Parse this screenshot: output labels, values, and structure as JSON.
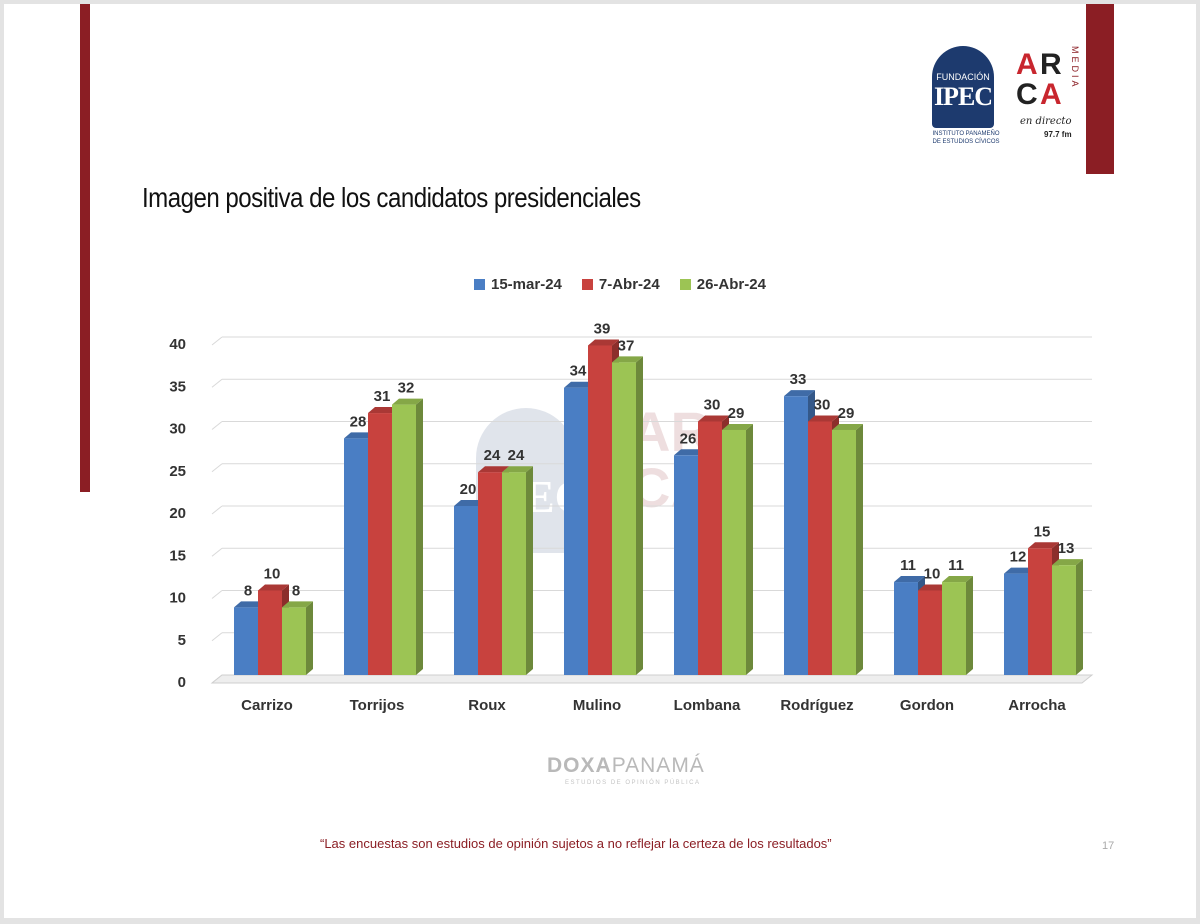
{
  "slide_title": "Imagen positiva de los candidatos presidenciales",
  "logos": {
    "ipec_top": "FUNDACIÓN",
    "ipec_name": "IPEC",
    "ipec_sub1": "INSTITUTO PANAMEÑO",
    "ipec_sub2": "DE ESTUDIOS CÍVICOS",
    "arca_a": "A",
    "arca_r": "R",
    "arca_c": "C",
    "arca_a2": "A",
    "arca_media": "MEDIA",
    "arca_tagline": "en directo",
    "arca_fm": "97.7 fm"
  },
  "chart_data": {
    "type": "bar",
    "title": "",
    "xlabel": "",
    "ylabel": "",
    "ylim": [
      0,
      40
    ],
    "yticks": [
      0,
      5,
      10,
      15,
      20,
      25,
      30,
      35,
      40
    ],
    "categories": [
      "Carrizo",
      "Torrijos",
      "Roux",
      "Mulino",
      "Lombana",
      "Rodríguez",
      "Gordon",
      "Arrocha"
    ],
    "series": [
      {
        "name": "15-mar-24",
        "color": "#4a7ec4",
        "values": [
          8,
          28,
          20,
          34,
          26,
          33,
          11,
          12
        ]
      },
      {
        "name": "7-Abr-24",
        "color": "#c8423e",
        "values": [
          10,
          31,
          24,
          39,
          30,
          30,
          10,
          15
        ]
      },
      {
        "name": "26-Abr-24",
        "color": "#9cc454",
        "values": [
          8,
          32,
          24,
          37,
          29,
          29,
          11,
          13
        ]
      }
    ],
    "legend_position": "top-center",
    "grid": true,
    "style": "3d-bar"
  },
  "source": {
    "brand_bold": "DOXA",
    "brand_light": "PANAMÁ",
    "tagline": "ESTUDIOS DE OPINIÓN PÚBLICA"
  },
  "disclaimer": "“Las encuestas son estudios de opinión sujetos a no reflejar la certeza de los resultados”",
  "page_number": "17"
}
